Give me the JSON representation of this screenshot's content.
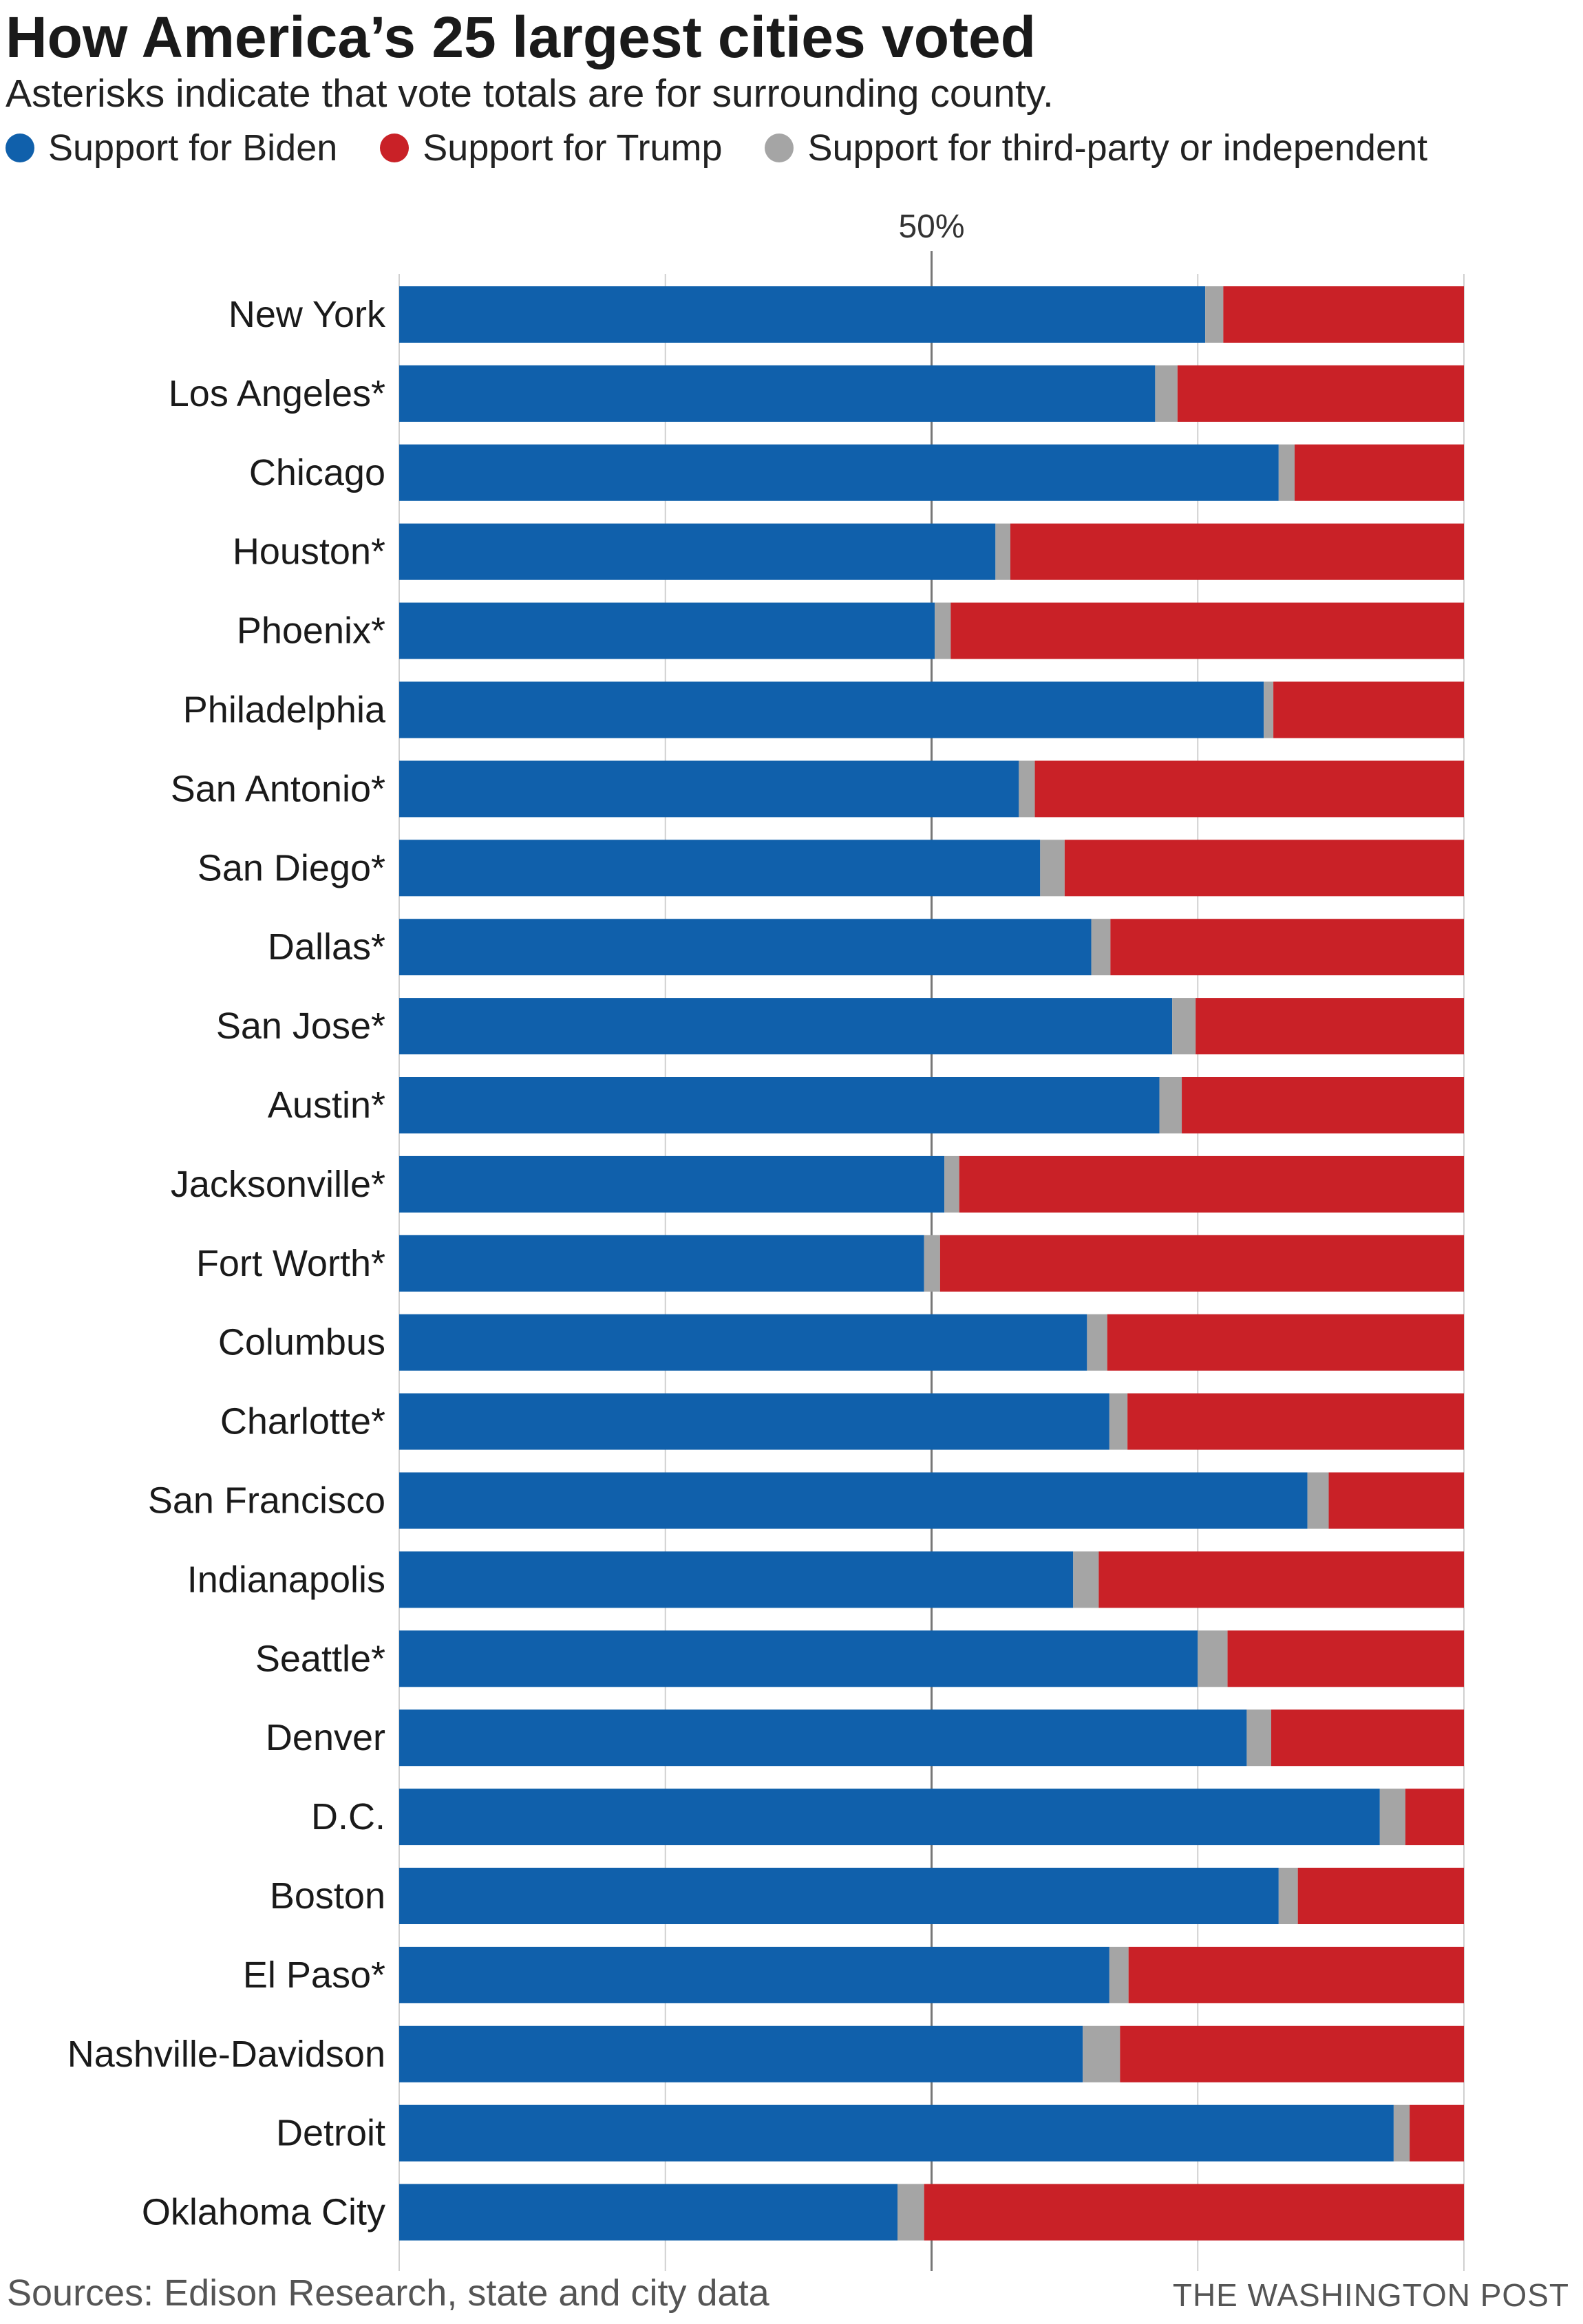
{
  "title": "How America’s 25 largest cities voted",
  "subtitle": "Asterisks indicate that vote totals are for surrounding county.",
  "legend": [
    {
      "label": "Support for Biden",
      "color": "#1060ab"
    },
    {
      "label": "Support for Trump",
      "color": "#c92127"
    },
    {
      "label": "Support for third-party or independent",
      "color": "#a5a5a5"
    }
  ],
  "footer": {
    "source": "Sources: Edison Research, state and city data",
    "credit": "THE WASHINGTON POST"
  },
  "chart_data": {
    "type": "bar",
    "orientation": "horizontal",
    "stacked": true,
    "x_tick_label": "50%",
    "x_tick_value": 50,
    "xlim": [
      0,
      100
    ],
    "grid": true,
    "categories": [
      "New York",
      "Los Angeles*",
      "Chicago",
      "Houston*",
      "Phoenix*",
      "Philadelphia",
      "San Antonio*",
      "San Diego*",
      "Dallas*",
      "San Jose*",
      "Austin*",
      "Jacksonville*",
      "Fort Worth*",
      "Columbus",
      "Charlotte*",
      "San Francisco",
      "Indianapolis",
      "Seattle*",
      "Denver",
      "D.C.",
      "Boston",
      "El Paso*",
      "Nashville-Davidson",
      "Detroit",
      "Oklahoma City"
    ],
    "series": [
      {
        "name": "Support for Biden",
        "color": "#1060ab",
        "values": [
          75.7,
          71.0,
          82.6,
          56.0,
          50.3,
          81.2,
          58.2,
          60.2,
          65.0,
          72.6,
          71.4,
          51.2,
          49.3,
          64.6,
          66.7,
          85.3,
          63.3,
          75.0,
          79.6,
          92.1,
          82.6,
          66.7,
          64.2,
          93.4,
          46.8
        ]
      },
      {
        "name": "Support for third-party or independent",
        "color": "#a5a5a5",
        "values": [
          1.7,
          2.1,
          1.5,
          1.4,
          1.5,
          0.9,
          1.5,
          2.3,
          1.8,
          2.2,
          2.1,
          1.4,
          1.5,
          1.9,
          1.7,
          2.0,
          2.4,
          2.8,
          2.3,
          2.4,
          1.8,
          1.8,
          3.5,
          1.5,
          2.5
        ]
      },
      {
        "name": "Support for Trump",
        "color": "#c92127",
        "values": [
          22.6,
          26.9,
          15.9,
          42.6,
          48.2,
          17.9,
          40.3,
          37.5,
          33.2,
          25.2,
          26.5,
          47.4,
          49.2,
          33.5,
          31.6,
          12.7,
          34.3,
          22.2,
          18.1,
          5.5,
          15.6,
          31.5,
          32.3,
          5.1,
          50.7
        ]
      }
    ]
  }
}
